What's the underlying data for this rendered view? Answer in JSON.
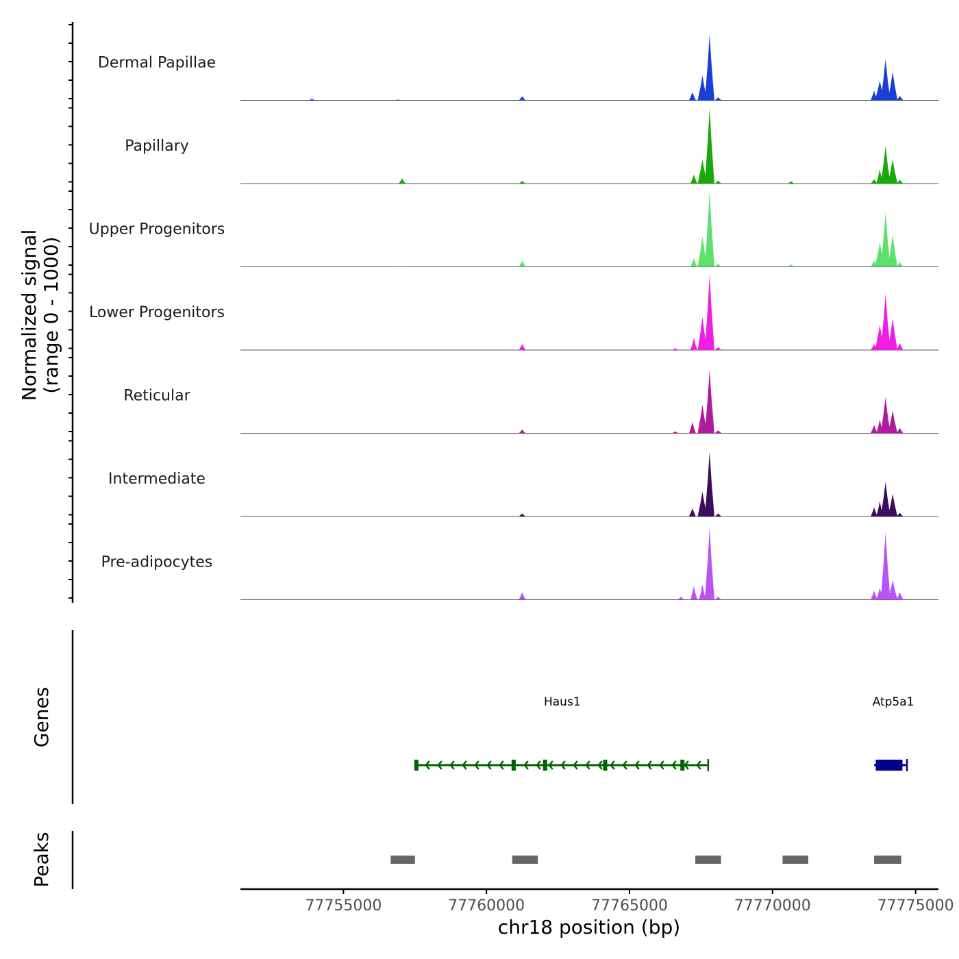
{
  "chart_data": {
    "type": "area",
    "title": "",
    "xlabel": "chr18 position (bp)",
    "ylabel": "Normalized signal",
    "ylabel_sub": "(range 0 - 1000)",
    "xlim": [
      77751400,
      77775800
    ],
    "x_ticks": [
      77755000,
      77760000,
      77765000,
      77770000,
      77775000
    ],
    "x_tick_labels": [
      "77755000",
      "77760000",
      "77765000",
      "77770000",
      "77775000"
    ],
    "ylim": [
      0,
      1000
    ],
    "peak_centers": [
      77757100,
      77761250,
      77767350,
      77767800,
      77773650,
      77773950,
      77774200
    ],
    "tracks": [
      {
        "name": "Dermal Papillae",
        "color": "#1a3fd6",
        "peaks": [
          [
            77753900,
            20
          ],
          [
            77756900,
            10
          ],
          [
            77761250,
            55
          ],
          [
            77767200,
            110
          ],
          [
            77767550,
            330
          ],
          [
            77767800,
            870
          ],
          [
            77768100,
            40
          ],
          [
            77773550,
            130
          ],
          [
            77773750,
            260
          ],
          [
            77773950,
            550
          ],
          [
            77774200,
            380
          ],
          [
            77774450,
            60
          ]
        ]
      },
      {
        "name": "Papillary",
        "color": "#1aa80f",
        "peaks": [
          [
            77757050,
            70
          ],
          [
            77761250,
            35
          ],
          [
            77767250,
            120
          ],
          [
            77767550,
            320
          ],
          [
            77767800,
            1000
          ],
          [
            77768100,
            40
          ],
          [
            77770650,
            30
          ],
          [
            77773550,
            60
          ],
          [
            77773750,
            190
          ],
          [
            77773950,
            500
          ],
          [
            77774200,
            320
          ],
          [
            77774450,
            50
          ]
        ]
      },
      {
        "name": "Upper Progenitors",
        "color": "#5ee06b",
        "peaks": [
          [
            77757050,
            15
          ],
          [
            77761250,
            80
          ],
          [
            77767250,
            110
          ],
          [
            77767550,
            400
          ],
          [
            77767800,
            1000
          ],
          [
            77768100,
            40
          ],
          [
            77770650,
            30
          ],
          [
            77773550,
            80
          ],
          [
            77773750,
            320
          ],
          [
            77773950,
            720
          ],
          [
            77774200,
            420
          ],
          [
            77774450,
            60
          ]
        ]
      },
      {
        "name": "Lower Progenitors",
        "color": "#ee1ee6",
        "peaks": [
          [
            77761250,
            80
          ],
          [
            77766600,
            25
          ],
          [
            77767250,
            160
          ],
          [
            77767550,
            440
          ],
          [
            77767800,
            1000
          ],
          [
            77768100,
            40
          ],
          [
            77773550,
            80
          ],
          [
            77773750,
            330
          ],
          [
            77773950,
            750
          ],
          [
            77774200,
            420
          ],
          [
            77774450,
            90
          ]
        ]
      },
      {
        "name": "Reticular",
        "color": "#b01a9e",
        "peaks": [
          [
            77761250,
            50
          ],
          [
            77766600,
            25
          ],
          [
            77767200,
            150
          ],
          [
            77767550,
            380
          ],
          [
            77767800,
            840
          ],
          [
            77768100,
            40
          ],
          [
            77773550,
            110
          ],
          [
            77773750,
            180
          ],
          [
            77773950,
            480
          ],
          [
            77774200,
            300
          ],
          [
            77774450,
            70
          ]
        ]
      },
      {
        "name": "Intermediate",
        "color": "#3c0d5e",
        "peaks": [
          [
            77761250,
            40
          ],
          [
            77767200,
            110
          ],
          [
            77767550,
            330
          ],
          [
            77767800,
            860
          ],
          [
            77768100,
            40
          ],
          [
            77773550,
            120
          ],
          [
            77773750,
            200
          ],
          [
            77773950,
            460
          ],
          [
            77774200,
            300
          ],
          [
            77774450,
            50
          ]
        ]
      },
      {
        "name": "Pre-adipocytes",
        "color": "#b954f2",
        "peaks": [
          [
            77761250,
            100
          ],
          [
            77766800,
            40
          ],
          [
            77767250,
            180
          ],
          [
            77767550,
            200
          ],
          [
            77767800,
            950
          ],
          [
            77768100,
            40
          ],
          [
            77773550,
            120
          ],
          [
            77773750,
            160
          ],
          [
            77773950,
            900
          ],
          [
            77774200,
            260
          ],
          [
            77774450,
            100
          ]
        ]
      }
    ],
    "genes_label": "Genes",
    "genes": [
      {
        "name": "Haus1",
        "start": 77757550,
        "end": 77767750,
        "strand": "-",
        "color": "#006400",
        "exons": [
          77757550,
          77760950,
          77762050,
          77764150,
          77766850
        ]
      },
      {
        "name": "Atp5a1",
        "start": 77773550,
        "end": 77774700,
        "strand": "+",
        "color": "#00008b",
        "exons": [
          77773800,
          77774100,
          77774350
        ]
      }
    ],
    "peaks_label": "Peaks",
    "peak_regions": [
      [
        77756650,
        77757500
      ],
      [
        77760900,
        77761800
      ],
      [
        77767300,
        77768200
      ],
      [
        77770350,
        77771250
      ],
      [
        77773550,
        77774500
      ]
    ]
  }
}
